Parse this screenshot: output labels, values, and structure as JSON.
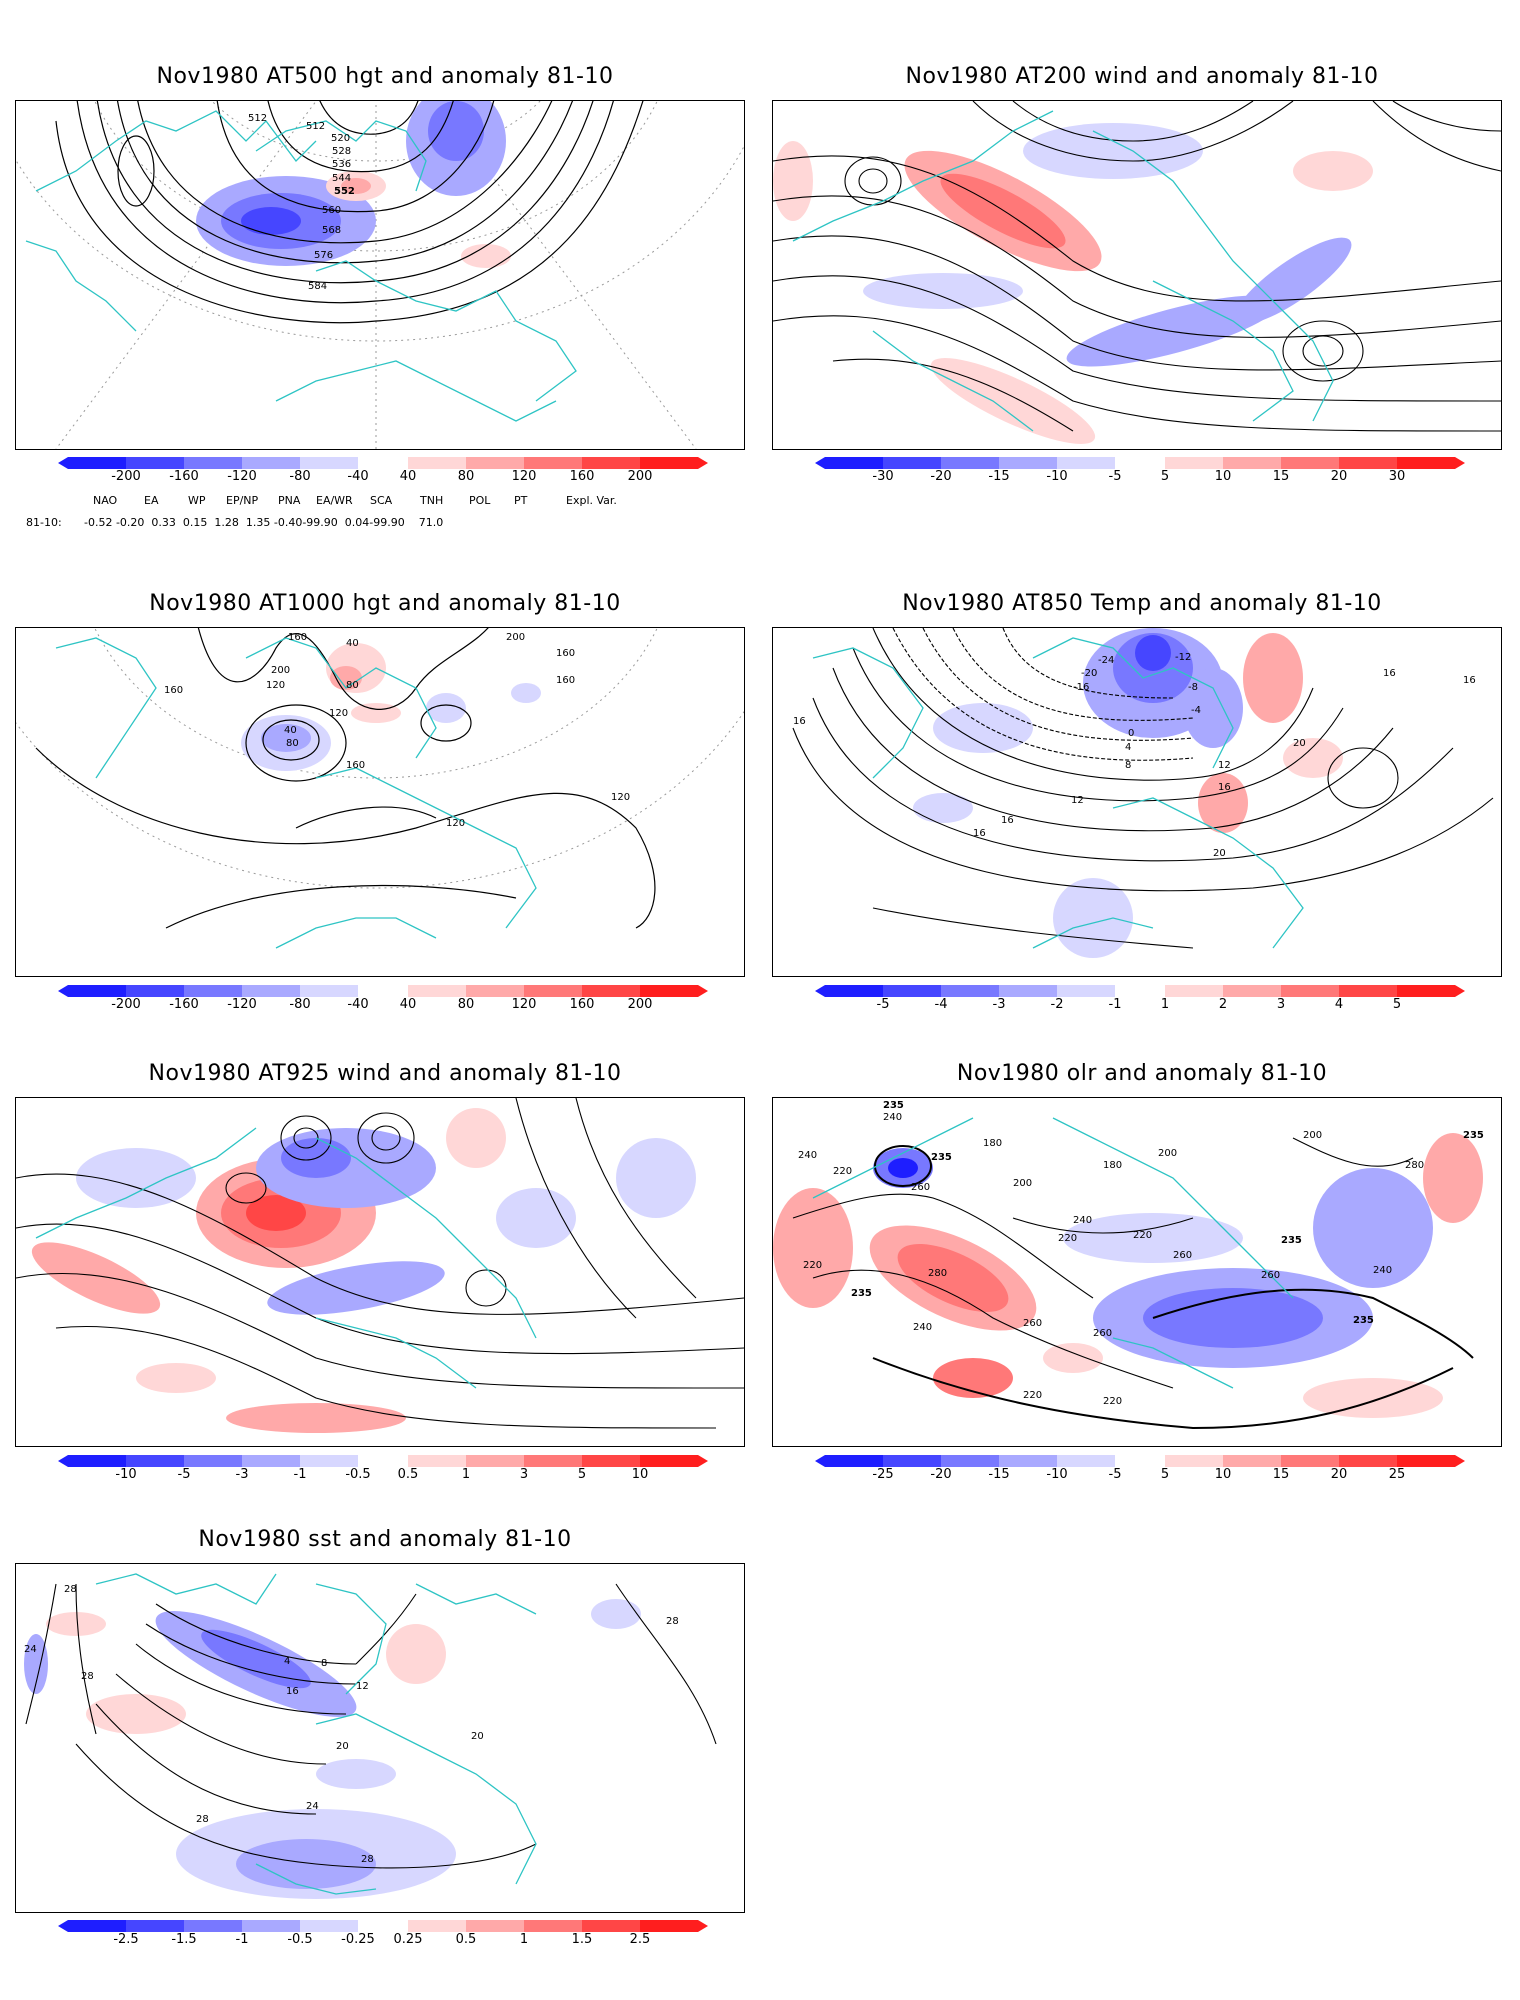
{
  "panels": [
    {
      "title": "Nov1980 AT500 hgt and anomaly 81-10",
      "contour_labels": [
        "512",
        "512",
        "520",
        "528",
        "536",
        "544",
        "552",
        "560",
        "568",
        "576",
        "584"
      ],
      "colorbar": [
        "-200",
        "-160",
        "-120",
        "-80",
        "-40",
        "40",
        "80",
        "120",
        "160",
        "200"
      ]
    },
    {
      "title": "Nov1980 AT200 wind and anomaly 81-10",
      "contour_labels": [],
      "colorbar": [
        "-30",
        "-20",
        "-15",
        "-10",
        "-5",
        "5",
        "10",
        "15",
        "20",
        "30"
      ]
    },
    {
      "title": "Nov1980 AT1000 hgt and anomaly 81-10",
      "contour_labels": [
        "160",
        "200",
        "40",
        "120",
        "160",
        "80",
        "120",
        "40",
        "160",
        "80",
        "200",
        "160",
        "160",
        "120",
        "120"
      ],
      "colorbar": [
        "-200",
        "-160",
        "-120",
        "-80",
        "-40",
        "40",
        "80",
        "120",
        "160",
        "200"
      ]
    },
    {
      "title": "Nov1980 AT850 Temp and anomaly 81-10",
      "contour_labels": [
        "-24",
        "-12",
        "-20",
        "-16",
        "-8",
        "-4",
        "0",
        "4",
        "8",
        "12",
        "16",
        "16",
        "16",
        "16",
        "20",
        "12",
        "16",
        "20",
        "16"
      ],
      "colorbar": [
        "-5",
        "-4",
        "-3",
        "-2",
        "-1",
        "1",
        "2",
        "3",
        "4",
        "5"
      ]
    },
    {
      "title": "Nov1980 AT925 wind and anomaly 81-10",
      "contour_labels": [],
      "colorbar": [
        "-10",
        "-5",
        "-3",
        "-1",
        "-0.5",
        "0.5",
        "1",
        "3",
        "5",
        "10"
      ]
    },
    {
      "title": "Nov1980 olr and anomaly 81-10",
      "contour_labels": [
        "235",
        "240",
        "240",
        "220",
        "235",
        "260",
        "180",
        "200",
        "180",
        "200",
        "200",
        "240",
        "220",
        "220",
        "220",
        "235",
        "280",
        "240",
        "260",
        "260",
        "220",
        "220",
        "260",
        "260",
        "235",
        "280",
        "235",
        "240",
        "235"
      ],
      "colorbar": [
        "-25",
        "-20",
        "-15",
        "-10",
        "-5",
        "5",
        "10",
        "15",
        "20",
        "25"
      ]
    },
    {
      "title": "Nov1980 sst and anomaly 81-10",
      "contour_labels": [
        "28",
        "24",
        "28",
        "4",
        "8",
        "12",
        "16",
        "20",
        "24",
        "28",
        "28",
        "20",
        "28"
      ],
      "colorbar": [
        "-2.5",
        "-1.5",
        "-1",
        "-0.5",
        "-0.25",
        "0.25",
        "0.5",
        "1",
        "1.5",
        "2.5"
      ]
    }
  ],
  "index_table": {
    "headers": [
      "NAO",
      "EA",
      "WP",
      "EP/NP",
      "PNA",
      "EA/WR",
      "SCA",
      "TNH",
      "POL",
      "PT",
      "Expl. Var."
    ],
    "row_label": "81-10:",
    "row_text": "-0.52 -0.20  0.33  0.15  1.28  1.35 -0.40-99.90  0.04-99.90    71.0"
  },
  "colors": {
    "land_outline": "#2ec4c4",
    "contour": "#000000",
    "grid": "#9a9a9a",
    "neg": [
      "#1e1eff",
      "#4646ff",
      "#7878ff",
      "#a9a9ff",
      "#d7d7ff"
    ],
    "pos": [
      "#ffd7d7",
      "#ffa9a9",
      "#ff7878",
      "#ff4646",
      "#ff1e1e"
    ]
  }
}
